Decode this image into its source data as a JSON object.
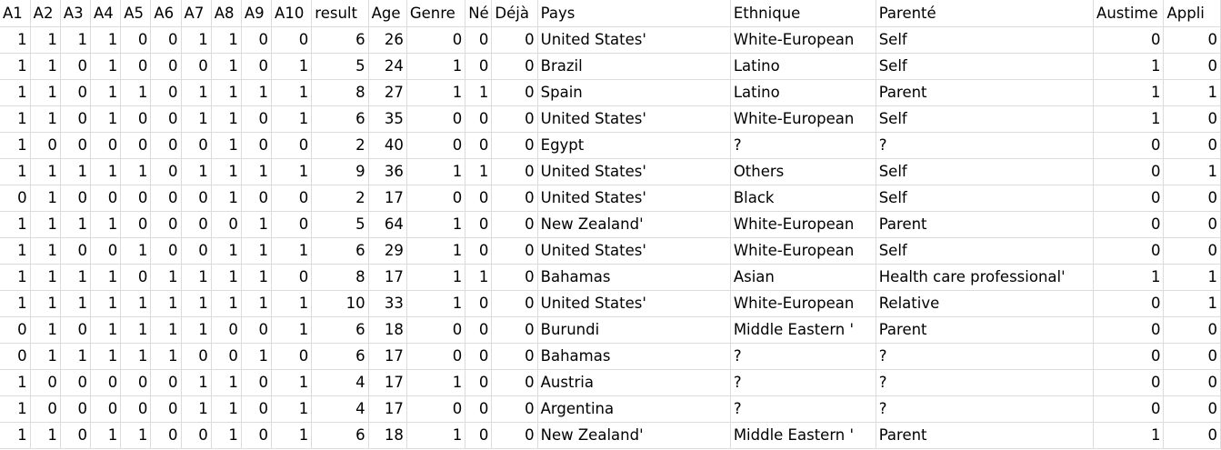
{
  "columns": [
    "A1",
    "A2",
    "A3",
    "A4",
    "A5",
    "A6",
    "A7",
    "A8",
    "A9",
    "A10",
    "result",
    "Age",
    "Genre",
    "Né",
    "Déjà",
    "Pays",
    "Ethnique",
    "Parenté",
    "Austime",
    "Appli"
  ],
  "rows": [
    [
      "1",
      "1",
      "1",
      "1",
      "0",
      "0",
      "1",
      "1",
      "0",
      "0",
      "6",
      "26",
      "0",
      "0",
      "0",
      "United States'",
      "White-European",
      "Self",
      "0",
      "0"
    ],
    [
      "1",
      "1",
      "0",
      "1",
      "0",
      "0",
      "0",
      "1",
      "0",
      "1",
      "5",
      "24",
      "1",
      "0",
      "0",
      "Brazil",
      "Latino",
      "Self",
      "1",
      "0"
    ],
    [
      "1",
      "1",
      "0",
      "1",
      "1",
      "0",
      "1",
      "1",
      "1",
      "1",
      "8",
      "27",
      "1",
      "1",
      "0",
      "Spain",
      "Latino",
      "Parent",
      "1",
      "1"
    ],
    [
      "1",
      "1",
      "0",
      "1",
      "0",
      "0",
      "1",
      "1",
      "0",
      "1",
      "6",
      "35",
      "0",
      "0",
      "0",
      "United States'",
      "White-European",
      "Self",
      "1",
      "0"
    ],
    [
      "1",
      "0",
      "0",
      "0",
      "0",
      "0",
      "0",
      "1",
      "0",
      "0",
      "2",
      "40",
      "0",
      "0",
      "0",
      "Egypt",
      "?",
      "?",
      "0",
      "0"
    ],
    [
      "1",
      "1",
      "1",
      "1",
      "1",
      "0",
      "1",
      "1",
      "1",
      "1",
      "9",
      "36",
      "1",
      "1",
      "0",
      "United States'",
      "Others",
      "Self",
      "0",
      "1"
    ],
    [
      "0",
      "1",
      "0",
      "0",
      "0",
      "0",
      "0",
      "1",
      "0",
      "0",
      "2",
      "17",
      "0",
      "0",
      "0",
      "United States'",
      "Black",
      "Self",
      "0",
      "0"
    ],
    [
      "1",
      "1",
      "1",
      "1",
      "0",
      "0",
      "0",
      "0",
      "1",
      "0",
      "5",
      "64",
      "1",
      "0",
      "0",
      "New Zealand'",
      "White-European",
      "Parent",
      "0",
      "0"
    ],
    [
      "1",
      "1",
      "0",
      "0",
      "1",
      "0",
      "0",
      "1",
      "1",
      "1",
      "6",
      "29",
      "1",
      "0",
      "0",
      "United States'",
      "White-European",
      "Self",
      "0",
      "0"
    ],
    [
      "1",
      "1",
      "1",
      "1",
      "0",
      "1",
      "1",
      "1",
      "1",
      "0",
      "8",
      "17",
      "1",
      "1",
      "0",
      "Bahamas",
      "Asian",
      "Health care professional'",
      "1",
      "1"
    ],
    [
      "1",
      "1",
      "1",
      "1",
      "1",
      "1",
      "1",
      "1",
      "1",
      "1",
      "10",
      "33",
      "1",
      "0",
      "0",
      "United States'",
      "White-European",
      "Relative",
      "0",
      "1"
    ],
    [
      "0",
      "1",
      "0",
      "1",
      "1",
      "1",
      "1",
      "0",
      "0",
      "1",
      "6",
      "18",
      "0",
      "0",
      "0",
      "Burundi",
      "Middle Eastern '",
      "Parent",
      "0",
      "0"
    ],
    [
      "0",
      "1",
      "1",
      "1",
      "1",
      "1",
      "0",
      "0",
      "1",
      "0",
      "6",
      "17",
      "0",
      "0",
      "0",
      "Bahamas",
      "?",
      "?",
      "0",
      "0"
    ],
    [
      "1",
      "0",
      "0",
      "0",
      "0",
      "0",
      "1",
      "1",
      "0",
      "1",
      "4",
      "17",
      "1",
      "0",
      "0",
      "Austria",
      "?",
      "?",
      "0",
      "0"
    ],
    [
      "1",
      "0",
      "0",
      "0",
      "0",
      "0",
      "1",
      "1",
      "0",
      "1",
      "4",
      "17",
      "0",
      "0",
      "0",
      "Argentina",
      "?",
      "?",
      "0",
      "0"
    ],
    [
      "1",
      "1",
      "0",
      "1",
      "1",
      "0",
      "0",
      "1",
      "0",
      "1",
      "6",
      "18",
      "1",
      "0",
      "0",
      "New Zealand'",
      "Middle Eastern '",
      "Parent",
      "1",
      "0"
    ]
  ]
}
